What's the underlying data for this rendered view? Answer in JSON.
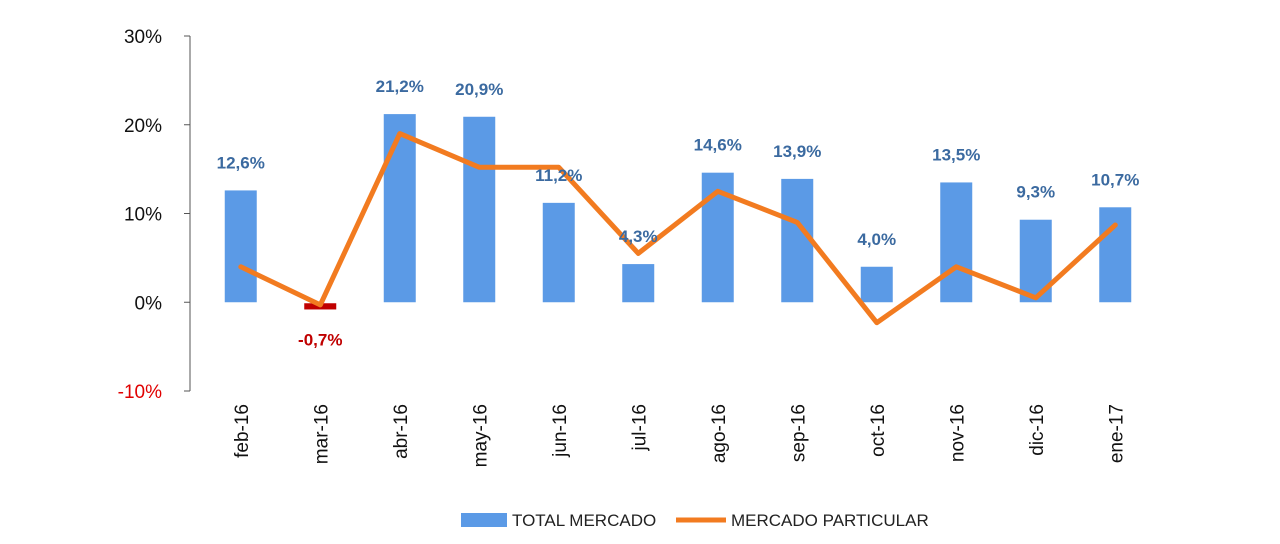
{
  "chart_data": {
    "type": "bar",
    "categories": [
      "feb-16",
      "mar-16",
      "abr-16",
      "may-16",
      "jun-16",
      "jul-16",
      "ago-16",
      "sep-16",
      "oct-16",
      "nov-16",
      "dic-16",
      "ene-17"
    ],
    "series": [
      {
        "name": "TOTAL MERCADO",
        "type": "bar",
        "color": "#5b9ae6",
        "values": [
          12.6,
          -0.7,
          21.2,
          20.9,
          11.2,
          4.3,
          14.6,
          13.9,
          4.0,
          13.5,
          9.3,
          10.7
        ],
        "labels": [
          "12,6%",
          "-0,7%",
          "21,2%",
          "20,9%",
          "11,2%",
          "4,3%",
          "14,6%",
          "13,9%",
          "4,0%",
          "13,5%",
          "9,3%",
          "10,7%"
        ]
      },
      {
        "name": "MERCADO PARTICULAR",
        "type": "line",
        "color": "#f27b20",
        "values": [
          4.0,
          -0.3,
          19.0,
          15.2,
          15.2,
          5.5,
          12.5,
          9.0,
          -2.3,
          4.0,
          0.5,
          8.7
        ]
      }
    ],
    "ylim": [
      -10,
      30
    ],
    "yticks": [
      -10,
      0,
      10,
      20,
      30
    ],
    "ytick_labels": [
      "-10%",
      "0%",
      "10%",
      "20%",
      "30%"
    ],
    "negative_color": "#c00000",
    "negative_tick_color": "#e00000",
    "label_color": "#3b6aa0",
    "legend_position": "bottom",
    "grid": false,
    "title": "",
    "xlabel": "",
    "ylabel": ""
  }
}
